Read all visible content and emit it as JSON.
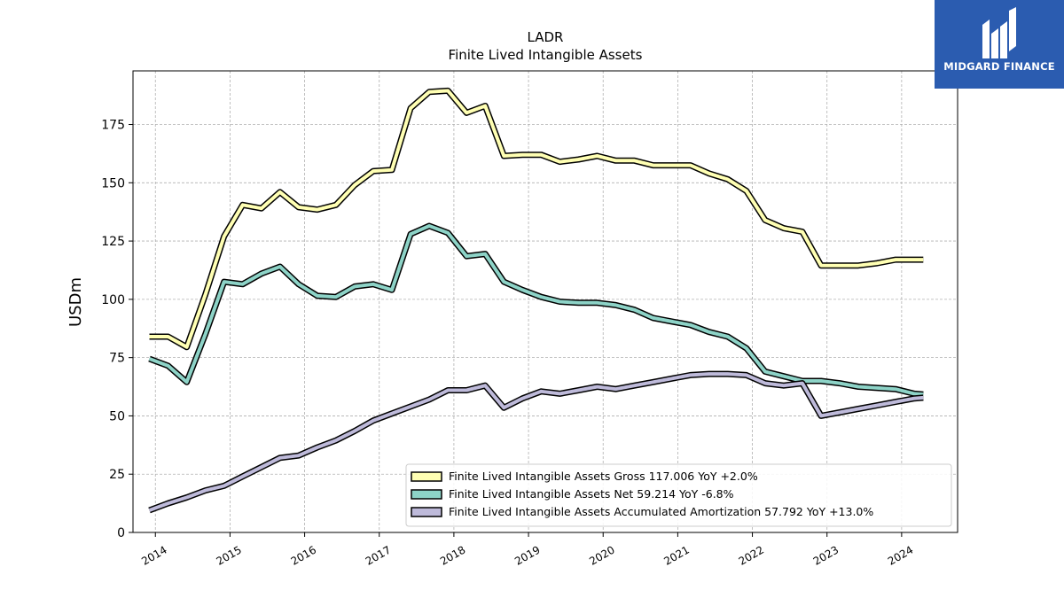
{
  "brand": {
    "name": "MIDGARD FINANCE",
    "color": "#2b5cb0",
    "icon": "midgard-logo-icon"
  },
  "chart_data": {
    "type": "line",
    "title": "LADR",
    "subtitle": "Finite Lived Intangible Assets",
    "xlabel": "",
    "ylabel": "USDm",
    "xlim": [
      2013.7,
      2024.75
    ],
    "ylim": [
      0,
      198
    ],
    "yticks": [
      0,
      25,
      50,
      75,
      100,
      125,
      150,
      175
    ],
    "xticks": [
      2014,
      2015,
      2016,
      2017,
      2018,
      2019,
      2020,
      2021,
      2022,
      2023,
      2024
    ],
    "xtick_labels": [
      "2014",
      "2015",
      "2016",
      "2017",
      "2018",
      "2019",
      "2020",
      "2021",
      "2022",
      "2023",
      "2024"
    ],
    "grid": true,
    "legend_position": "lower-right",
    "x": [
      2013.92,
      2014.17,
      2014.42,
      2014.67,
      2014.92,
      2015.17,
      2015.42,
      2015.67,
      2015.92,
      2016.17,
      2016.42,
      2016.67,
      2016.92,
      2017.17,
      2017.42,
      2017.67,
      2017.92,
      2018.17,
      2018.42,
      2018.67,
      2018.92,
      2019.17,
      2019.42,
      2019.67,
      2019.92,
      2020.17,
      2020.42,
      2020.67,
      2020.92,
      2021.17,
      2021.42,
      2021.67,
      2021.92,
      2022.17,
      2022.42,
      2022.67,
      2022.92,
      2023.17,
      2023.42,
      2023.67,
      2023.92,
      2024.17,
      2024.29
    ],
    "series": [
      {
        "name": "Finite Lived Intangible Assets Gross  117.006 YoY +2.0%",
        "color": "#ffffb3",
        "values": [
          84,
          84,
          79.5,
          102,
          127,
          140.5,
          139,
          146,
          139.5,
          138.5,
          140.5,
          149,
          155,
          155.5,
          182,
          189,
          189.5,
          180,
          183,
          161.5,
          162,
          162,
          159,
          160,
          161.5,
          159.5,
          159.5,
          157.5,
          157.5,
          157.5,
          154,
          151.5,
          146.5,
          134,
          130.5,
          129,
          114.5,
          114.5,
          114.5,
          115.5,
          117,
          117,
          117
        ]
      },
      {
        "name": "Finite Lived Intangible Assets Net  59.214 YoY -6.8%",
        "color": "#8dd3c7",
        "values": [
          74.5,
          71.5,
          64.5,
          85,
          107.5,
          106.5,
          111,
          114,
          106.5,
          101.5,
          101,
          105.5,
          106.5,
          104,
          128,
          131.5,
          128.5,
          118.5,
          119.5,
          107.5,
          104,
          101,
          99,
          98.5,
          98.5,
          97.5,
          95.5,
          92,
          90.5,
          89,
          86,
          84,
          79,
          69,
          67,
          65,
          65,
          64,
          62.5,
          62,
          61.5,
          59.5,
          59.2
        ]
      },
      {
        "name": "Finite Lived Intangible Assets Accumulated Amortization  57.792 YoY +13.0%",
        "color": "#bebada",
        "values": [
          9.5,
          12.5,
          15,
          18,
          20,
          24,
          28,
          32,
          33,
          36.5,
          39.5,
          43.5,
          48,
          51,
          54,
          57,
          61,
          61,
          63,
          53.5,
          57.5,
          60.5,
          59.5,
          61,
          62.5,
          61.5,
          63,
          64.5,
          66,
          67.5,
          68,
          68,
          67.5,
          64,
          63,
          64,
          50,
          51.5,
          53,
          54.5,
          56,
          57.5,
          57.8
        ]
      }
    ]
  }
}
